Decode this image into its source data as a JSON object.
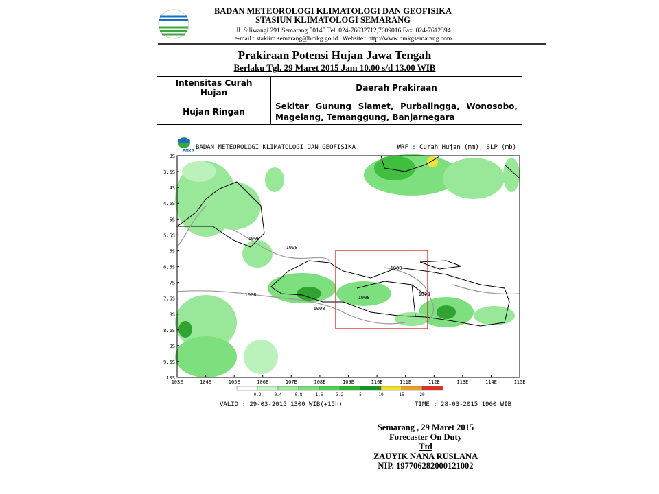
{
  "header": {
    "line1": "BADAN METEOROLOGI KLIMATOLOGI DAN GEOFISIKA",
    "line2": "STASIUN KLIMATOLOGI SEMARANG",
    "address": "Jl. Siliwangi 291 Semarang 50145 Tel. 024-76632712,7609016 Fax. 024-7612394",
    "contact": "e-mail : staklim.semarang@bmkg.go.id  |  Website : http://www.bmkgsemarang.com"
  },
  "report": {
    "title": "Prakiraan Potensi Hujan Jawa Tengah",
    "validity": "Berlaku Tgl. 29 Maret 2015 Jam 10.00 s/d 13.00 WIB"
  },
  "table": {
    "headers": [
      "Intensitas Curah Hujan",
      "Daerah Prakiraan"
    ],
    "rows": [
      [
        "Hujan Ringan",
        "Sekitar Gunung Slamet, Purbalingga, Wonosobo, Magelang, Temanggung, Banjarnegara"
      ]
    ]
  },
  "map": {
    "logo": "BMKG",
    "title": "BADAN METEOROLOGI KLIMATOLOGI DAN GEOFISIKA",
    "product": "WRF : Curah Hujan (mm), SLP (mb)",
    "y_labels": [
      "3S",
      "3.5S",
      "4S",
      "4.5S",
      "5S",
      "5.5S",
      "6S",
      "6.5S",
      "7S",
      "7.5S",
      "8S",
      "8.5S",
      "9S",
      "9.5S",
      "10S"
    ],
    "x_labels": [
      "103E",
      "104E",
      "105E",
      "106E",
      "107E",
      "108E",
      "109E",
      "110E",
      "111E",
      "112E",
      "113E",
      "114E",
      "115E"
    ],
    "contour_labels": [
      "1008",
      "1008",
      "1008",
      "1008",
      "1008",
      "1008",
      "1008"
    ],
    "colorbar_labels": [
      "0.2",
      "0.4",
      "0.8",
      "1.6",
      "3.2",
      "5",
      "10",
      "15",
      "20"
    ],
    "valid": "VALID : 29-03-2015 1300 WIB(+15h)",
    "time": "TIME : 28-03-2015 1900 WIB"
  },
  "footer": {
    "place_date": "Semarang , 29  Maret 2015",
    "role": "Forecaster On Duty",
    "signed": "Ttd",
    "name": "ZAUYIK NANA RUSLANA",
    "nip": "NIP. 197706282000121002"
  }
}
